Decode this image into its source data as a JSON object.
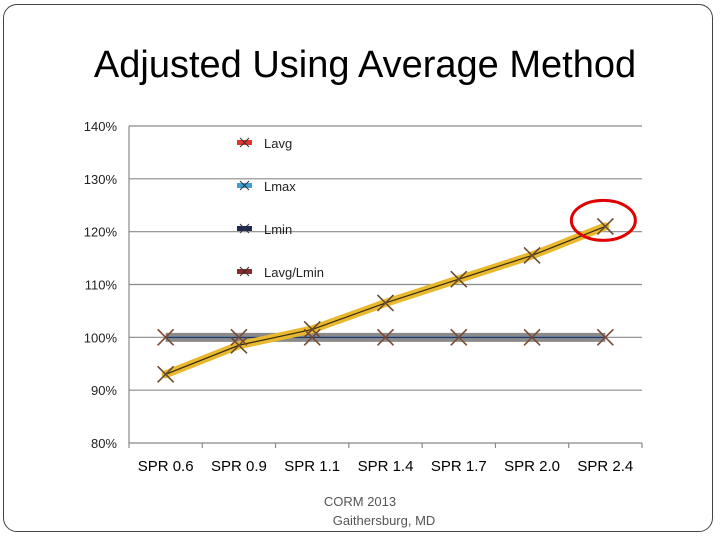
{
  "slide": {
    "title": "Adjusted Using Average Method",
    "footer_line1": "CORM 2013",
    "footer_line2": "Gaithersburg, MD"
  },
  "chart_data": {
    "type": "line",
    "title": "",
    "xlabel": "",
    "ylabel": "",
    "categories": [
      "SPR 0.6",
      "SPR 0.9",
      "SPR 1.1",
      "SPR 1.4",
      "SPR 1.7",
      "SPR 2.0",
      "SPR 2.4"
    ],
    "ylim": [
      80,
      140
    ],
    "y_ticks": [
      80,
      90,
      100,
      110,
      120,
      130,
      140
    ],
    "y_tick_labels": [
      "80%",
      "90%",
      "100%",
      "110%",
      "120%",
      "130%",
      "140%"
    ],
    "grid": true,
    "legend_position": "upper-center-left",
    "series": [
      {
        "name": "Lavg",
        "color": "#e8b92e",
        "marker_color": "#e3342f",
        "values": [
          93,
          98.5,
          101.5,
          106.5,
          111,
          115.5,
          121
        ]
      },
      {
        "name": "Lmax",
        "color": "#4a8fc0",
        "marker_color": "#3e9fd8",
        "values": [
          100,
          100,
          100,
          100,
          100,
          100,
          100
        ]
      },
      {
        "name": "Lmin",
        "color": "#1f2a5a",
        "marker_color": "#1f2a5a",
        "values": [
          100,
          100,
          100,
          100,
          100,
          100,
          100
        ]
      },
      {
        "name": "Lavg/Lmin",
        "color": "#8b2a2a",
        "marker_color": "#8b2a2a",
        "values": [
          93,
          98.5,
          101.5,
          106.5,
          111,
          115.5,
          121
        ]
      }
    ],
    "annotation": {
      "type": "circle",
      "color": "#e00000",
      "category_index": 6,
      "value": 121
    }
  }
}
